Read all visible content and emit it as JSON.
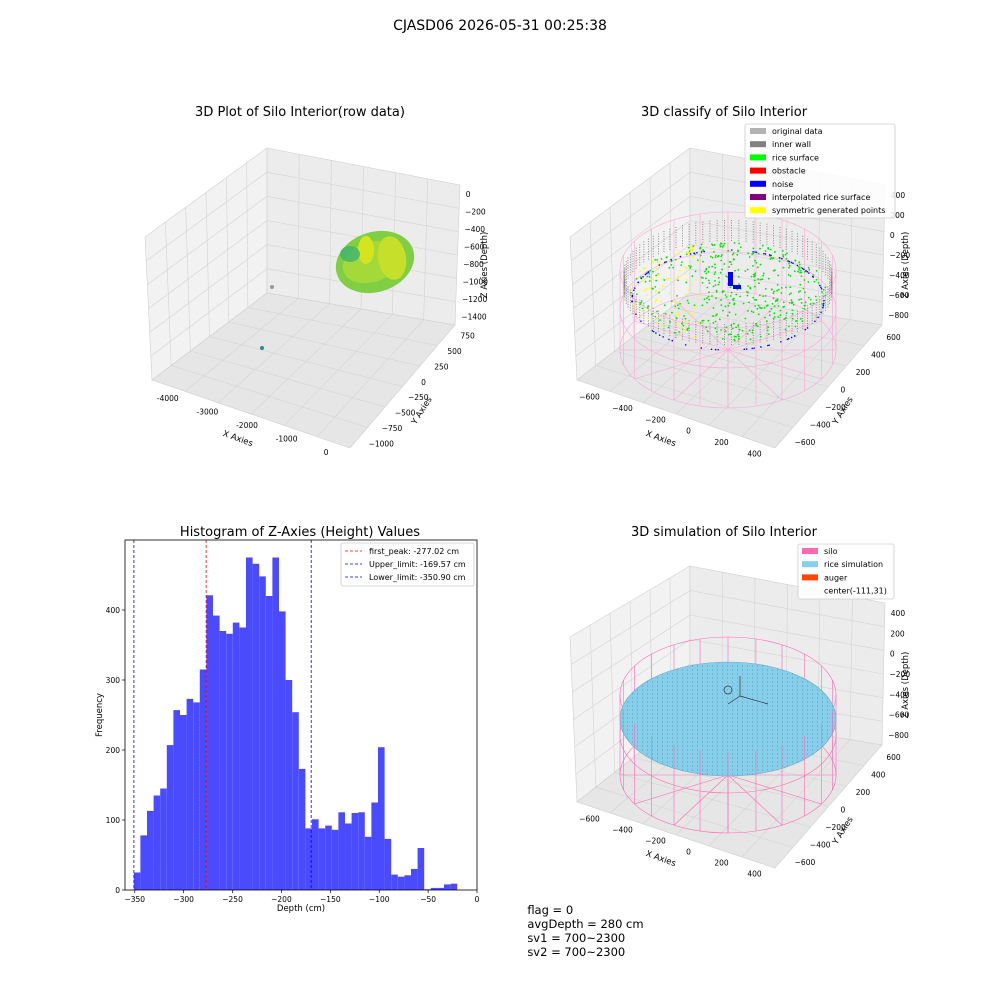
{
  "suptitle": "CJASD06 2026-05-31 00:25:38",
  "panels": {
    "raw": {
      "title": "3D Plot of Silo Interior(row data)",
      "xlabel": "X Axies",
      "ylabel": "Y Axies",
      "zlabel": "Z Axies (Depth)",
      "xticks": [
        "-4000",
        "-3000",
        "-2000",
        "-1000",
        "0"
      ],
      "yticks": [
        "750",
        "500",
        "250",
        "0",
        "−250",
        "−500",
        "−750",
        "−1000"
      ],
      "zticks": [
        "0",
        "−200",
        "−400",
        "−600",
        "−800",
        "−1000",
        "−1200",
        "−1400"
      ]
    },
    "classify": {
      "title": "3D classify of Silo Interior",
      "xlabel": "X Axies",
      "ylabel": "Y Axies",
      "zlabel": "Z Axies (Depth)",
      "xticks": [
        "−600",
        "−400",
        "−200",
        "0",
        "200",
        "400"
      ],
      "yticks": [
        "600",
        "400",
        "200",
        "0",
        "−200",
        "−400",
        "−600"
      ],
      "zticks": [
        "400",
        "200",
        "0",
        "−200",
        "−400",
        "−600",
        "−800"
      ],
      "legend": [
        {
          "label": "original data",
          "color": "#b3b3b3"
        },
        {
          "label": "inner wall",
          "color": "#808080"
        },
        {
          "label": "rice surface",
          "color": "#00ff00"
        },
        {
          "label": "obstacle",
          "color": "#ff0000"
        },
        {
          "label": "noise",
          "color": "#0000ff"
        },
        {
          "label": "interpolated rice surface",
          "color": "#800080"
        },
        {
          "label": "symmetric generated points",
          "color": "#ffff00"
        }
      ]
    },
    "simulation": {
      "title": "3D simulation of Silo Interior",
      "xlabel": "X Axies",
      "ylabel": "Y Axies",
      "zlabel": "Z Axies (Depth)",
      "xticks": [
        "−600",
        "−400",
        "−200",
        "0",
        "200",
        "400"
      ],
      "yticks": [
        "600",
        "400",
        "200",
        "0",
        "−200",
        "−400",
        "−600"
      ],
      "zticks": [
        "400",
        "200",
        "0",
        "−200",
        "−400",
        "−600",
        "−800"
      ],
      "legend": [
        {
          "label": "silo",
          "color": "#ff69b4"
        },
        {
          "label": "rice simulation",
          "color": "#87ceeb"
        },
        {
          "label": "auger",
          "color": "#ff4500"
        },
        {
          "label": "center(-111,31)",
          "color": ""
        }
      ]
    }
  },
  "chart_data": {
    "type": "bar",
    "title": "Histogram of Z-Axies (Height) Values",
    "xlabel": "Depth (cm)",
    "ylabel": "Frequency",
    "xlim": [
      -360,
      0
    ],
    "ylim": [
      0,
      500
    ],
    "xticks": [
      "−350",
      "−300",
      "−250",
      "−200",
      "−150",
      "−100",
      "−50",
      "0"
    ],
    "yticks": [
      "0",
      "100",
      "200",
      "300",
      "400"
    ],
    "bar_color": "#4a4aff",
    "bin_start": -351,
    "bin_width": 6.75,
    "values": [
      25,
      78,
      113,
      135,
      145,
      207,
      257,
      250,
      273,
      268,
      315,
      421,
      392,
      370,
      366,
      382,
      375,
      475,
      466,
      448,
      420,
      475,
      398,
      300,
      254,
      173,
      88,
      101,
      88,
      92,
      86,
      111,
      95,
      110,
      111,
      76,
      125,
      204,
      73,
      22,
      19,
      21,
      30,
      60,
      1,
      3,
      3,
      8,
      9
    ],
    "vlines": [
      {
        "label": "first_peak: -277.02 cm",
        "x": -277.02,
        "color": "#ff0000"
      },
      {
        "label": "Upper_limit: -169.57 cm",
        "x": -169.57,
        "color": "#0000ff"
      },
      {
        "label": "Lower_limit: -350.90 cm",
        "x": -350.9,
        "color": "#0000ff"
      }
    ],
    "legend_position": "upper-right"
  },
  "footer": {
    "flag": "flag = 0",
    "avg_depth": "avgDepth = 280 cm",
    "sv1": "sv1 = 700~2300",
    "sv2": "sv2 = 700~2300"
  }
}
